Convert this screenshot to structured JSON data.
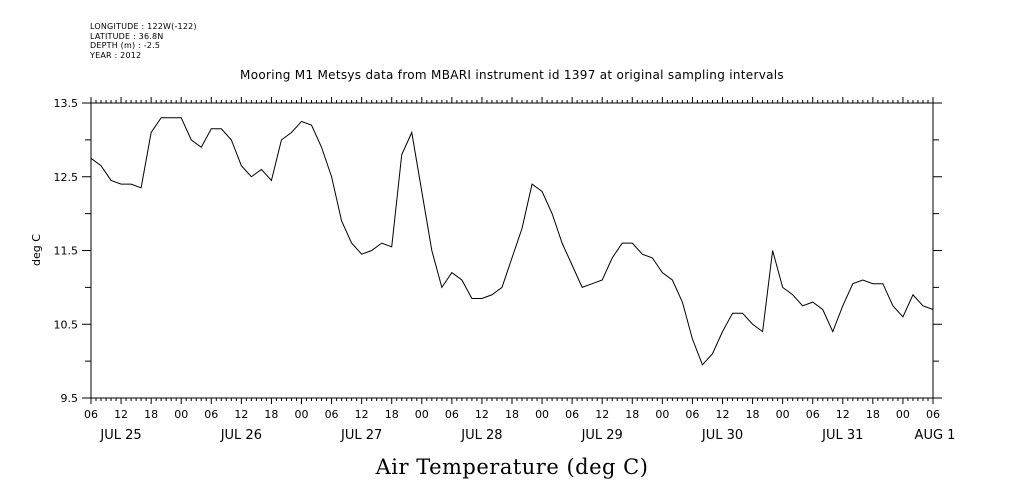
{
  "header": {
    "meta_lines": [
      "LONGITUDE : 122W(-122)",
      "LATITUDE : 36.8N",
      "DEPTH (m) : -2.5",
      "YEAR : 2012"
    ]
  },
  "chart_data": {
    "type": "line",
    "title": "Mooring M1 Metsys data from MBARI instrument id 1397 at original sampling intervals",
    "xlabel": "Air Temperature (deg C)",
    "ylabel": "deg C",
    "ylim": [
      9.5,
      13.5
    ],
    "yticks": [
      9.5,
      10.5,
      11.5,
      12.5,
      13.5
    ],
    "xlim": [
      "2012-07-25T06:00",
      "2012-08-01T06:00"
    ],
    "hour_tick_labels": [
      "06",
      "12",
      "18",
      "00",
      "06",
      "12",
      "18",
      "00",
      "06",
      "12",
      "18",
      "00",
      "06",
      "12",
      "18",
      "00",
      "06",
      "12",
      "18",
      "00",
      "06",
      "12",
      "18",
      "00",
      "06",
      "12",
      "18",
      "00",
      "06"
    ],
    "day_labels": [
      "JUL 25",
      "JUL 26",
      "JUL 27",
      "JUL 28",
      "JUL 29",
      "JUL 30",
      "JUL 31",
      "AUG 1"
    ],
    "grid": false,
    "series": [
      {
        "x": [
          "2012-07-25T06:00",
          "2012-07-25T08:00",
          "2012-07-25T10:00",
          "2012-07-25T12:00",
          "2012-07-25T14:00",
          "2012-07-25T16:00",
          "2012-07-25T18:00",
          "2012-07-25T20:00",
          "2012-07-25T22:00",
          "2012-07-26T00:00",
          "2012-07-26T02:00",
          "2012-07-26T04:00",
          "2012-07-26T06:00",
          "2012-07-26T08:00",
          "2012-07-26T10:00",
          "2012-07-26T12:00",
          "2012-07-26T14:00",
          "2012-07-26T16:00",
          "2012-07-26T18:00",
          "2012-07-26T20:00",
          "2012-07-26T22:00",
          "2012-07-27T00:00",
          "2012-07-27T02:00",
          "2012-07-27T04:00",
          "2012-07-27T06:00",
          "2012-07-27T08:00",
          "2012-07-27T10:00",
          "2012-07-27T12:00",
          "2012-07-27T14:00",
          "2012-07-27T16:00",
          "2012-07-27T18:00",
          "2012-07-27T20:00",
          "2012-07-27T22:00",
          "2012-07-28T00:00",
          "2012-07-28T02:00",
          "2012-07-28T04:00",
          "2012-07-28T06:00",
          "2012-07-28T08:00",
          "2012-07-28T10:00",
          "2012-07-28T12:00",
          "2012-07-28T14:00",
          "2012-07-28T16:00",
          "2012-07-28T18:00",
          "2012-07-28T20:00",
          "2012-07-28T22:00",
          "2012-07-29T00:00",
          "2012-07-29T02:00",
          "2012-07-29T04:00",
          "2012-07-29T06:00",
          "2012-07-29T08:00",
          "2012-07-29T10:00",
          "2012-07-29T12:00",
          "2012-07-29T14:00",
          "2012-07-29T16:00",
          "2012-07-29T18:00",
          "2012-07-29T20:00",
          "2012-07-29T22:00",
          "2012-07-30T00:00",
          "2012-07-30T02:00",
          "2012-07-30T04:00",
          "2012-07-30T06:00",
          "2012-07-30T08:00",
          "2012-07-30T10:00",
          "2012-07-30T12:00",
          "2012-07-30T14:00",
          "2012-07-30T16:00",
          "2012-07-30T18:00",
          "2012-07-30T20:00",
          "2012-07-30T22:00",
          "2012-07-31T00:00",
          "2012-07-31T02:00",
          "2012-07-31T04:00",
          "2012-07-31T06:00",
          "2012-07-31T08:00",
          "2012-07-31T10:00",
          "2012-07-31T12:00",
          "2012-07-31T14:00",
          "2012-07-31T16:00",
          "2012-07-31T18:00",
          "2012-07-31T20:00",
          "2012-07-31T22:00",
          "2012-08-01T00:00",
          "2012-08-01T02:00",
          "2012-08-01T04:00",
          "2012-08-01T06:00"
        ],
        "y": [
          12.75,
          12.65,
          12.45,
          12.4,
          12.4,
          12.35,
          13.1,
          13.3,
          13.3,
          13.3,
          13.0,
          12.9,
          13.15,
          13.15,
          13.0,
          12.65,
          12.5,
          12.6,
          12.45,
          13.0,
          13.1,
          13.25,
          13.2,
          12.9,
          12.5,
          11.9,
          11.6,
          11.45,
          11.5,
          11.6,
          11.55,
          12.8,
          13.1,
          12.3,
          11.5,
          11.0,
          11.2,
          11.1,
          10.85,
          10.85,
          10.9,
          11.0,
          11.4,
          11.8,
          12.4,
          12.3,
          12.0,
          11.6,
          11.3,
          11.0,
          11.05,
          11.1,
          11.4,
          11.6,
          11.6,
          11.45,
          11.4,
          11.2,
          11.1,
          10.8,
          10.3,
          9.95,
          10.1,
          10.4,
          10.65,
          10.65,
          10.5,
          10.4,
          11.5,
          11.0,
          10.9,
          10.75,
          10.8,
          10.7,
          10.4,
          10.75,
          11.05,
          11.1,
          11.05,
          11.05,
          10.75,
          10.6,
          10.9,
          10.75,
          10.7
        ]
      }
    ]
  }
}
